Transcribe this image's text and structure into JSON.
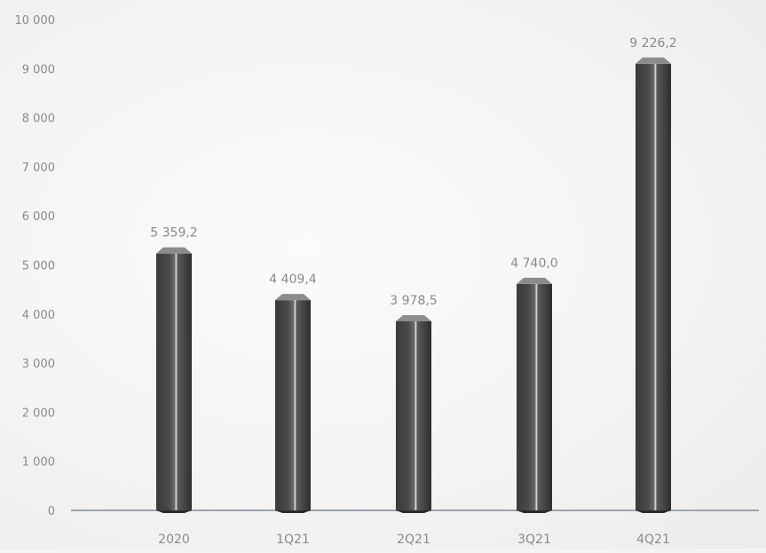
{
  "chart_data": {
    "type": "bar",
    "title": "",
    "xlabel": "",
    "ylabel": "",
    "categories": [
      "2020",
      "1Q21",
      "2Q21",
      "3Q21",
      "4Q21"
    ],
    "values": [
      5359.2,
      4409.4,
      3978.5,
      4740.0,
      9226.2
    ],
    "value_labels": [
      "5 359,2",
      "4 409,4",
      "3 978,5",
      "4 740,0",
      "9 226,2"
    ],
    "ylim": [
      0,
      10000
    ],
    "yticks": [
      0,
      1000,
      2000,
      3000,
      4000,
      5000,
      6000,
      7000,
      8000,
      9000,
      10000
    ],
    "ytick_labels": [
      "0",
      "1 000",
      "2 000",
      "3 000",
      "4 000",
      "5 000",
      "6 000",
      "7 000",
      "8 000",
      "9 000",
      "10 000"
    ],
    "grid": false,
    "legend": "none",
    "bar_style": "3d-cylinder",
    "colors": {
      "bar_face": "#4a4a4a",
      "bar_side": "#2e2e2e",
      "bar_top": "#8c8c8c",
      "axis": "#9aa3b0",
      "text": "#8a8a8a"
    }
  }
}
